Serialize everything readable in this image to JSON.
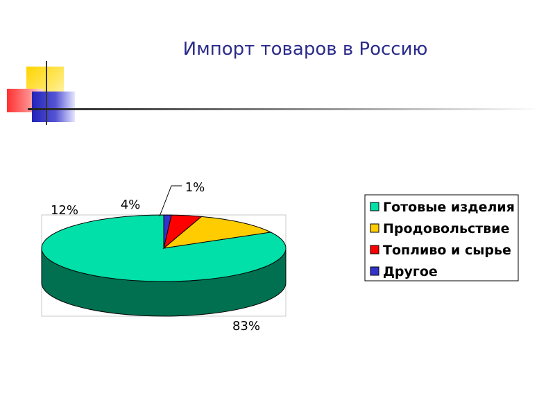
{
  "title": "Импорт товаров в Россию",
  "colors": {
    "title": "#2b2b8a",
    "finished_goods": "#00e0a8",
    "finished_goods_side": "#007050",
    "food": "#ffcc00",
    "food_side": "#806600",
    "fuel": "#ff0000",
    "fuel_side": "#800000",
    "other": "#3333cc",
    "other_side": "#1a1a66"
  },
  "chart_data": {
    "type": "pie",
    "title": "",
    "series": [
      {
        "name": "Готовые изделия",
        "value": 83,
        "label": "83%"
      },
      {
        "name": "Продовольствие",
        "value": 12,
        "label": "12%"
      },
      {
        "name": "Топливо и сырье",
        "value": 4,
        "label": "4%"
      },
      {
        "name": "Другое",
        "value": 1,
        "label": "1%"
      }
    ],
    "legend_position": "right"
  }
}
